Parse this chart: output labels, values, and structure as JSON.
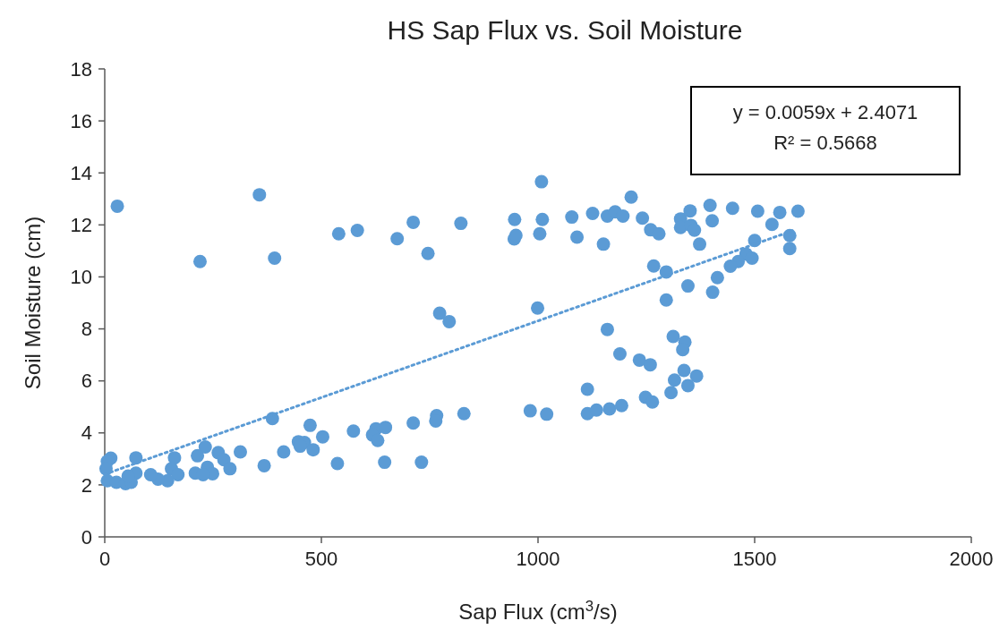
{
  "chart_data": {
    "type": "scatter",
    "title": "HS Sap Flux vs. Soil Moisture",
    "xlabel": "Sap Flux (cm$^{3}$/s)",
    "ylabel": "Soil Moisture (cm)",
    "xlim": [
      0,
      2000
    ],
    "xticks": [
      0,
      500,
      1000,
      1500,
      2000
    ],
    "ylim": [
      0,
      18
    ],
    "yticks": [
      0,
      2,
      4,
      6,
      8,
      10,
      12,
      14,
      16,
      18
    ],
    "grid": false,
    "annotations": [
      "y = 0.0059x + 2.4071",
      "R² = 0.5668"
    ],
    "series": [
      {
        "color": "#5b9bd5",
        "marker": "circle",
        "x": [
          29,
          357,
          220,
          392,
          540,
          583,
          675,
          712,
          746,
          822,
          773,
          795,
          387,
          474,
          503,
          574,
          626,
          648,
          618,
          630,
          712,
          766,
          764,
          829,
          537,
          646,
          731,
          368,
          413,
          313,
          447,
          461,
          451,
          481,
          72,
          161,
          14,
          232,
          214,
          262,
          275,
          289,
          237,
          209,
          249,
          227,
          154,
          169,
          145,
          123,
          106,
          72,
          6,
          3,
          6,
          27,
          48,
          61,
          54,
          1008,
          946,
          1010,
          1078,
          1126,
          1160,
          1178,
          1196,
          1215,
          1241,
          1260,
          1279,
          1329,
          1351,
          1329,
          1353,
          1361,
          1373,
          1397,
          1402,
          1449,
          1507,
          1558,
          1600,
          1540,
          945,
          949,
          1004,
          1090,
          1151,
          1500,
          1581,
          1581,
          1480,
          1494,
          1462,
          1444,
          1267,
          1296,
          1414,
          1346,
          1403,
          1296,
          999,
          1160,
          1312,
          1339,
          1334,
          1189,
          1234,
          1259,
          1337,
          1366,
          1315,
          1346,
          1307,
          1114,
          1248,
          1264,
          982,
          1020,
          1114,
          1135,
          1165,
          1193
        ],
        "values": [
          12.72,
          13.16,
          10.59,
          10.72,
          11.66,
          11.79,
          11.47,
          12.1,
          10.9,
          12.06,
          8.6,
          8.28,
          4.55,
          4.29,
          3.85,
          4.07,
          4.16,
          4.21,
          3.92,
          3.71,
          4.38,
          4.66,
          4.46,
          4.74,
          2.82,
          2.87,
          2.87,
          2.74,
          3.27,
          3.27,
          3.66,
          3.63,
          3.49,
          3.35,
          3.04,
          3.04,
          3.03,
          3.46,
          3.12,
          3.24,
          2.97,
          2.62,
          2.68,
          2.45,
          2.43,
          2.39,
          2.62,
          2.39,
          2.16,
          2.22,
          2.39,
          2.45,
          2.91,
          2.62,
          2.16,
          2.1,
          2.05,
          2.1,
          2.34,
          13.66,
          12.21,
          12.21,
          12.3,
          12.44,
          12.34,
          12.5,
          12.34,
          13.07,
          12.26,
          11.81,
          11.66,
          12.23,
          12.54,
          11.9,
          11.98,
          11.8,
          11.26,
          12.75,
          12.16,
          12.64,
          12.53,
          12.48,
          12.53,
          12.02,
          11.46,
          11.6,
          11.66,
          11.53,
          11.26,
          11.4,
          11.59,
          11.09,
          10.88,
          10.72,
          10.59,
          10.41,
          10.42,
          10.19,
          9.97,
          9.65,
          9.41,
          9.11,
          8.8,
          7.98,
          7.71,
          7.49,
          7.2,
          7.04,
          6.8,
          6.62,
          6.4,
          6.19,
          6.03,
          5.82,
          5.55,
          5.68,
          5.37,
          5.19,
          4.85,
          4.72,
          4.74,
          4.88,
          4.92,
          5.05
        ]
      },
      {
        "type": "line",
        "color": "#5b9bd5",
        "line_style": "dotted",
        "marker": "none",
        "x": [
          0,
          1590
        ],
        "values": [
          2.41,
          11.79
        ]
      }
    ]
  }
}
